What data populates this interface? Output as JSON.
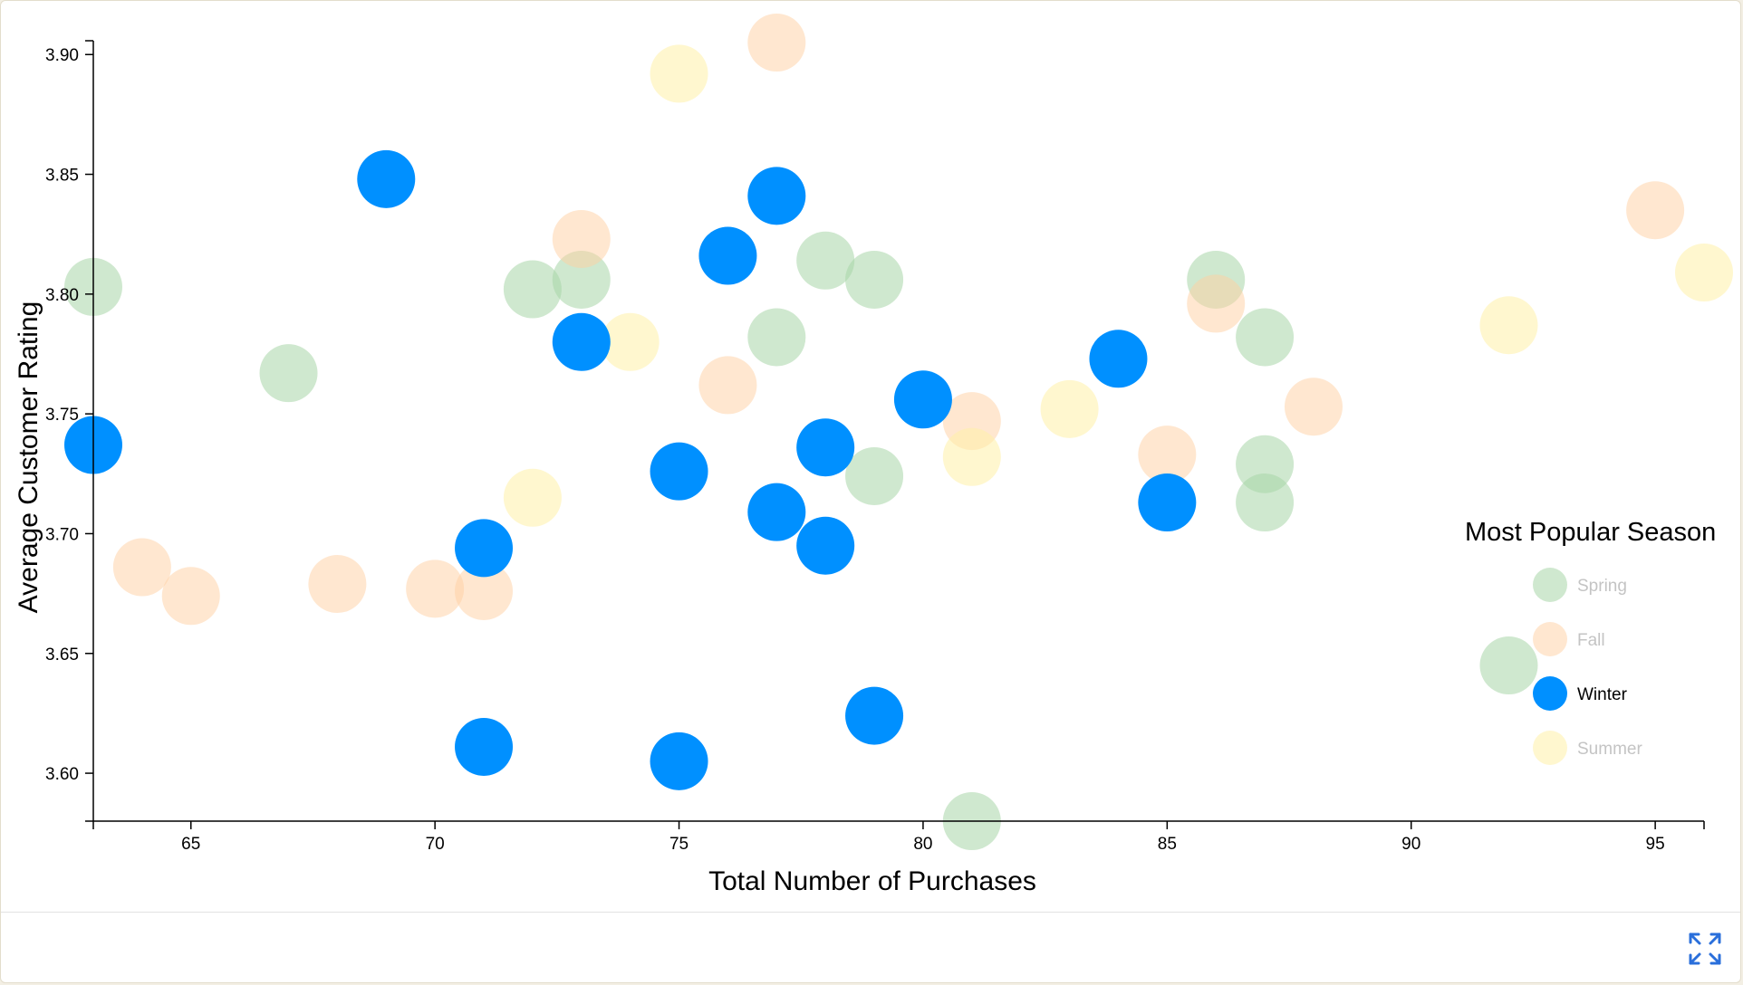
{
  "chart_data": {
    "type": "scatter",
    "xlabel": "Total Number of Purchases",
    "ylabel": "Average Customer Rating",
    "xlim": [
      63,
      96
    ],
    "ylim": [
      3.58,
      3.905
    ],
    "x_ticks": [
      65,
      70,
      75,
      80,
      85,
      90,
      95
    ],
    "y_ticks": [
      3.6,
      3.65,
      3.7,
      3.75,
      3.8,
      3.85,
      3.9
    ],
    "grid": false,
    "legend": {
      "title": "Most Popular Season",
      "placement": "right",
      "highlighted": "Winter"
    },
    "series": [
      {
        "name": "Spring",
        "color": "#a8d5a8",
        "opacity": 0.55,
        "points": [
          {
            "x": 63,
            "y": 3.803
          },
          {
            "x": 67,
            "y": 3.767
          },
          {
            "x": 72,
            "y": 3.802
          },
          {
            "x": 73,
            "y": 3.806
          },
          {
            "x": 77,
            "y": 3.782
          },
          {
            "x": 78,
            "y": 3.814
          },
          {
            "x": 79,
            "y": 3.806
          },
          {
            "x": 79,
            "y": 3.724
          },
          {
            "x": 81,
            "y": 3.58
          },
          {
            "x": 86,
            "y": 3.806
          },
          {
            "x": 87,
            "y": 3.782
          },
          {
            "x": 87,
            "y": 3.729
          },
          {
            "x": 87,
            "y": 3.713
          },
          {
            "x": 92,
            "y": 3.645
          }
        ]
      },
      {
        "name": "Fall",
        "color": "#ffcfa2",
        "opacity": 0.5,
        "points": [
          {
            "x": 64,
            "y": 3.686
          },
          {
            "x": 65,
            "y": 3.674
          },
          {
            "x": 68,
            "y": 3.679
          },
          {
            "x": 70,
            "y": 3.677
          },
          {
            "x": 71,
            "y": 3.676
          },
          {
            "x": 73,
            "y": 3.823
          },
          {
            "x": 76,
            "y": 3.762
          },
          {
            "x": 77,
            "y": 3.905
          },
          {
            "x": 81,
            "y": 3.747
          },
          {
            "x": 85,
            "y": 3.733
          },
          {
            "x": 86,
            "y": 3.796
          },
          {
            "x": 88,
            "y": 3.753
          },
          {
            "x": 95,
            "y": 3.835
          }
        ]
      },
      {
        "name": "Winter",
        "color": "#0090ff",
        "opacity": 1,
        "points": [
          {
            "x": 63,
            "y": 3.737
          },
          {
            "x": 69,
            "y": 3.848
          },
          {
            "x": 71,
            "y": 3.694
          },
          {
            "x": 71,
            "y": 3.611
          },
          {
            "x": 73,
            "y": 3.78
          },
          {
            "x": 75,
            "y": 3.726
          },
          {
            "x": 75,
            "y": 3.605
          },
          {
            "x": 76,
            "y": 3.816
          },
          {
            "x": 77,
            "y": 3.841
          },
          {
            "x": 77,
            "y": 3.709
          },
          {
            "x": 78,
            "y": 3.736
          },
          {
            "x": 78,
            "y": 3.695
          },
          {
            "x": 79,
            "y": 3.624
          },
          {
            "x": 80,
            "y": 3.756
          },
          {
            "x": 84,
            "y": 3.773
          },
          {
            "x": 85,
            "y": 3.713
          }
        ]
      },
      {
        "name": "Summer",
        "color": "#fff0a8",
        "opacity": 0.55,
        "points": [
          {
            "x": 72,
            "y": 3.715
          },
          {
            "x": 74,
            "y": 3.78
          },
          {
            "x": 75,
            "y": 3.892
          },
          {
            "x": 81,
            "y": 3.732
          },
          {
            "x": 83,
            "y": 3.752
          },
          {
            "x": 92,
            "y": 3.787
          },
          {
            "x": 96,
            "y": 3.809
          }
        ]
      }
    ]
  },
  "toolbar": {
    "expand_icon": "expand-arrows-icon",
    "accent_color": "#2a6fdb"
  }
}
